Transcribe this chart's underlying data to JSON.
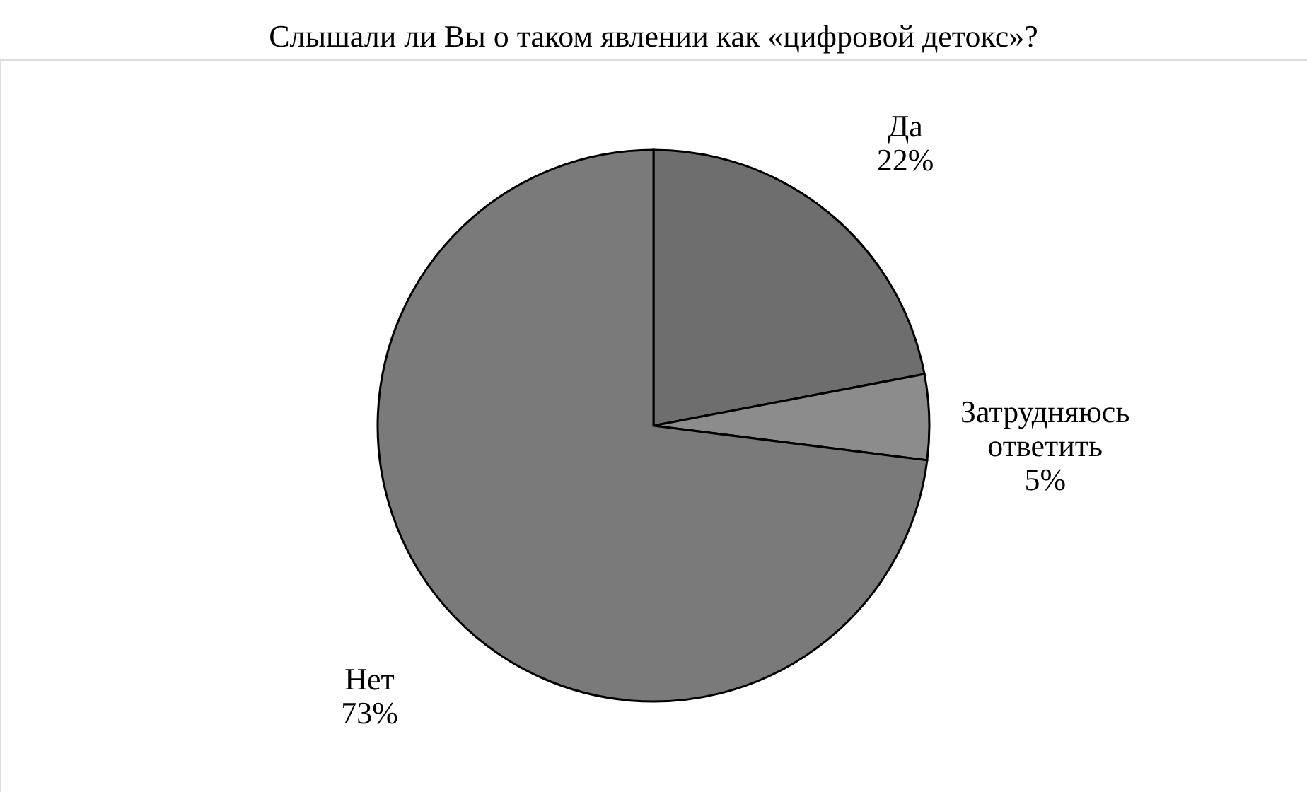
{
  "chart_data": {
    "type": "pie",
    "title": "Слышали ли Вы о таком явлении как «цифровой детокс»?",
    "categories": [
      "Да",
      "Затрудняюсь ответить",
      "Нет"
    ],
    "values": [
      22,
      5,
      73
    ],
    "colors": [
      "#6e6e6e",
      "#8c8c8c",
      "#7a7a7a"
    ],
    "value_labels": [
      "22%",
      "5%",
      "73%"
    ],
    "legend": false
  }
}
